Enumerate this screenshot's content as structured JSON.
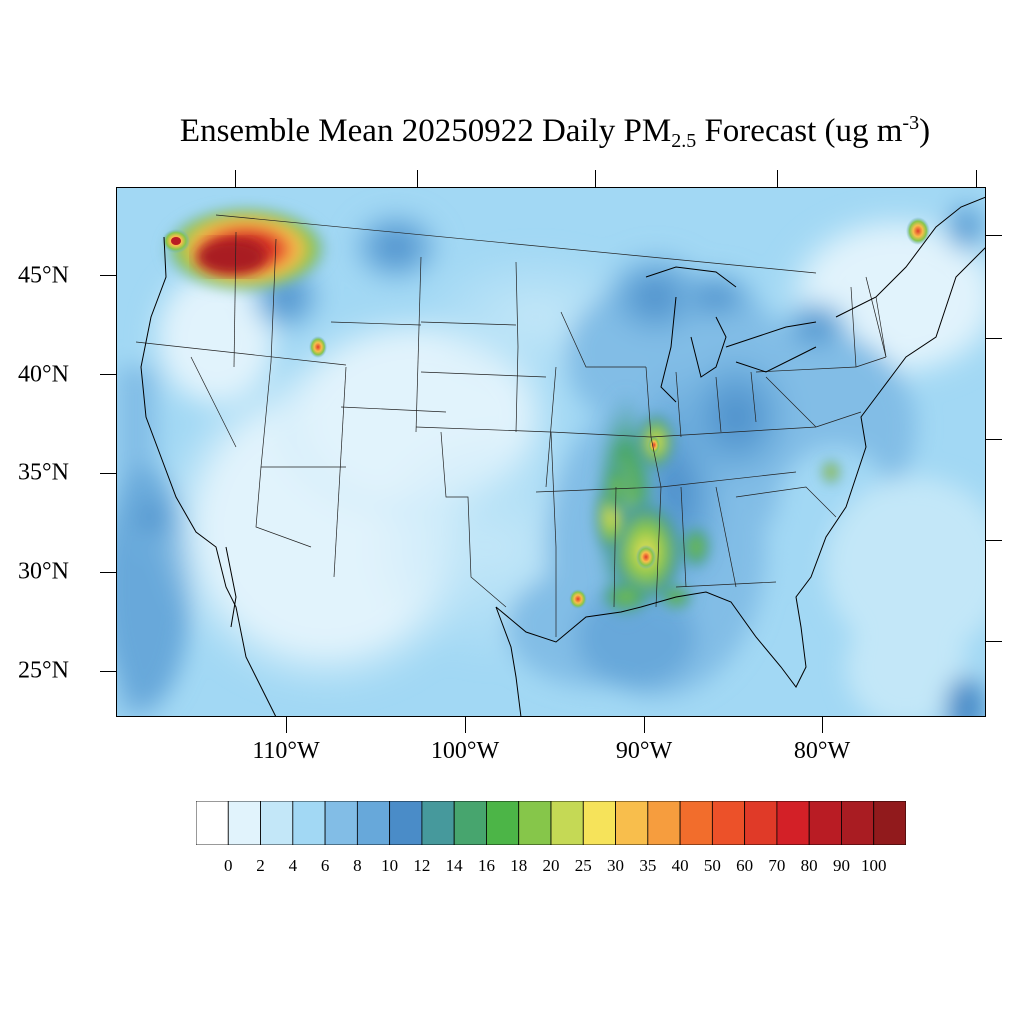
{
  "title": {
    "prefix": "Ensemble Mean 20250922 Daily PM",
    "subscript": "2.5",
    "middle": " Forecast (ug m",
    "superscript": "-3",
    "suffix": ")"
  },
  "lat_labels": [
    "45°N",
    "40°N",
    "35°N",
    "30°N",
    "25°N"
  ],
  "lon_labels": [
    "110°W",
    "100°W",
    "90°W",
    "80°W"
  ],
  "colorbar": {
    "tick_labels": [
      "0",
      "2",
      "4",
      "6",
      "8",
      "10",
      "12",
      "14",
      "16",
      "18",
      "20",
      "25",
      "30",
      "35",
      "40",
      "50",
      "60",
      "70",
      "80",
      "90",
      "100"
    ],
    "colors": [
      "#ffffff",
      "#e1f3fc",
      "#c3e7f8",
      "#a2d8f4",
      "#82bde6",
      "#67a8da",
      "#4a8cc8",
      "#46999c",
      "#47a56e",
      "#4cb547",
      "#86c64a",
      "#c5d955",
      "#f6e35a",
      "#f8be4c",
      "#f69d3e",
      "#f26d2c",
      "#ec5129",
      "#e03a28",
      "#d32027",
      "#b91c24",
      "#a91c22",
      "#911a1c"
    ]
  }
}
